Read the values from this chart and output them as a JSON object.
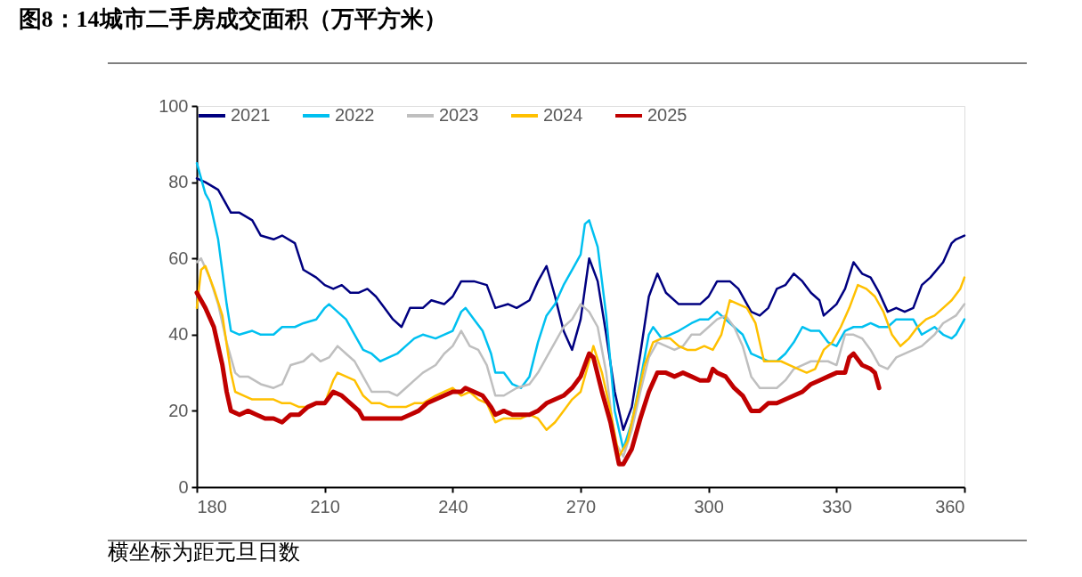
{
  "chart_data": {
    "type": "line",
    "title": "图8：14城市二手房成交面积（万平方米）",
    "annotations": [
      "横坐标为距元旦日数"
    ],
    "xlim": [
      180,
      360
    ],
    "xticks": [
      180,
      210,
      240,
      270,
      300,
      330,
      360
    ],
    "ylim": [
      0,
      100
    ],
    "yticks": [
      0,
      20,
      40,
      60,
      80,
      100
    ],
    "grid": false,
    "legend": "top",
    "line_style": "solid",
    "marker": "none",
    "series": [
      {
        "name": "2021",
        "color": "#000080",
        "x": [
          180,
          182,
          185,
          188,
          190,
          193,
          195,
          198,
          200,
          203,
          205,
          208,
          210,
          212,
          214,
          216,
          218,
          220,
          222,
          224,
          226,
          228,
          230,
          233,
          235,
          238,
          240,
          242,
          245,
          248,
          250,
          253,
          255,
          258,
          260,
          262,
          264,
          266,
          268,
          270,
          272,
          274,
          276,
          278,
          280,
          282,
          284,
          286,
          288,
          290,
          293,
          295,
          298,
          300,
          302,
          305,
          307,
          310,
          312,
          314,
          316,
          318,
          320,
          322,
          324,
          326,
          327,
          330,
          332,
          334,
          336,
          338,
          340,
          342,
          344,
          346,
          348,
          350,
          352,
          355,
          357,
          358,
          360
        ],
        "values": [
          81,
          80,
          78,
          72,
          72,
          70,
          66,
          65,
          66,
          64,
          57,
          55,
          53,
          52,
          53,
          51,
          51,
          52,
          50,
          47,
          44,
          42,
          47,
          47,
          49,
          48,
          50,
          54,
          54,
          53,
          47,
          48,
          47,
          49,
          54,
          58,
          50,
          41,
          36,
          44,
          60,
          54,
          40,
          25,
          15,
          21,
          35,
          50,
          56,
          51,
          48,
          48,
          48,
          50,
          54,
          54,
          52,
          46,
          45,
          47,
          52,
          53,
          56,
          54,
          51,
          49,
          45,
          48,
          52,
          59,
          56,
          55,
          51,
          46,
          47,
          46,
          47,
          53,
          55,
          59,
          64,
          65,
          66
        ]
      },
      {
        "name": "2022",
        "color": "#00c0f0",
        "x": [
          180,
          182,
          183,
          185,
          187,
          188,
          190,
          193,
          195,
          198,
          200,
          203,
          205,
          208,
          210,
          211,
          213,
          215,
          217,
          219,
          221,
          223,
          225,
          227,
          229,
          231,
          233,
          236,
          238,
          240,
          242,
          243,
          245,
          247,
          249,
          250,
          252,
          254,
          256,
          258,
          260,
          262,
          264,
          266,
          268,
          270,
          271,
          272,
          274,
          276,
          278,
          280,
          282,
          284,
          286,
          287,
          289,
          291,
          293,
          296,
          298,
          300,
          302,
          304,
          306,
          308,
          310,
          312,
          314,
          316,
          318,
          320,
          322,
          324,
          326,
          328,
          330,
          332,
          334,
          336,
          338,
          340,
          342,
          344,
          346,
          348,
          350,
          353,
          355,
          357,
          358,
          360
        ],
        "values": [
          85,
          77,
          75,
          65,
          48,
          41,
          40,
          41,
          40,
          40,
          42,
          42,
          43,
          44,
          47,
          48,
          46,
          44,
          40,
          36,
          35,
          33,
          34,
          35,
          37,
          39,
          40,
          39,
          40,
          41,
          46,
          47,
          44,
          41,
          35,
          30,
          30,
          27,
          26,
          29,
          38,
          45,
          48,
          53,
          57,
          61,
          69,
          70,
          63,
          45,
          20,
          10,
          17,
          28,
          40,
          42,
          39,
          40,
          41,
          43,
          44,
          44,
          46,
          44,
          42,
          40,
          35,
          34,
          33,
          33,
          35,
          38,
          42,
          41,
          41,
          38,
          37,
          41,
          42,
          42,
          43,
          42,
          42,
          44,
          44,
          44,
          40,
          42,
          40,
          39,
          40,
          44
        ]
      },
      {
        "name": "2023",
        "color": "#bfbfbf",
        "x": [
          180,
          181,
          183,
          185,
          187,
          189,
          190,
          192,
          195,
          198,
          200,
          202,
          205,
          207,
          209,
          211,
          213,
          215,
          217,
          219,
          221,
          223,
          225,
          227,
          229,
          231,
          233,
          236,
          238,
          240,
          242,
          244,
          246,
          248,
          250,
          252,
          255,
          258,
          260,
          262,
          264,
          266,
          268,
          270,
          272,
          274,
          276,
          278,
          280,
          282,
          284,
          286,
          288,
          290,
          292,
          294,
          296,
          298,
          300,
          302,
          304,
          306,
          308,
          310,
          312,
          314,
          316,
          318,
          320,
          322,
          324,
          326,
          328,
          330,
          332,
          334,
          336,
          338,
          340,
          342,
          344,
          346,
          348,
          350,
          353,
          355,
          358,
          360
        ],
        "values": [
          59,
          60,
          55,
          48,
          38,
          30,
          29,
          29,
          27,
          26,
          27,
          32,
          33,
          35,
          33,
          34,
          37,
          35,
          33,
          29,
          25,
          25,
          25,
          24,
          26,
          28,
          30,
          32,
          35,
          37,
          41,
          37,
          36,
          32,
          24,
          24,
          26,
          27,
          30,
          34,
          38,
          42,
          44,
          48,
          46,
          42,
          30,
          12,
          8,
          15,
          25,
          34,
          38,
          37,
          36,
          37,
          40,
          40,
          42,
          44,
          45,
          42,
          37,
          29,
          26,
          26,
          26,
          28,
          31,
          32,
          33,
          33,
          33,
          32,
          40,
          40,
          39,
          36,
          32,
          31,
          34,
          35,
          36,
          37,
          40,
          43,
          45,
          48
        ]
      },
      {
        "name": "2024",
        "color": "#ffc000",
        "x": [
          180,
          181,
          182,
          184,
          186,
          188,
          189,
          191,
          193,
          196,
          198,
          200,
          202,
          204,
          206,
          208,
          210,
          212,
          213,
          215,
          217,
          219,
          221,
          223,
          225,
          227,
          229,
          231,
          233,
          236,
          238,
          240,
          242,
          244,
          246,
          248,
          250,
          252,
          254,
          256,
          258,
          260,
          262,
          264,
          266,
          268,
          270,
          272,
          273,
          275,
          277,
          279,
          281,
          283,
          285,
          287,
          289,
          291,
          293,
          295,
          297,
          299,
          301,
          303,
          305,
          307,
          309,
          311,
          313,
          315,
          317,
          319,
          321,
          323,
          325,
          327,
          329,
          331,
          333,
          335,
          337,
          339,
          341,
          343,
          345,
          347,
          349,
          351,
          353,
          355,
          357,
          359,
          360
        ],
        "values": [
          47,
          57,
          58,
          52,
          45,
          30,
          25,
          24,
          23,
          23,
          23,
          22,
          22,
          21,
          21,
          22,
          22,
          28,
          30,
          29,
          28,
          24,
          22,
          22,
          21,
          21,
          21,
          22,
          22,
          24,
          25,
          26,
          24,
          25,
          23,
          22,
          17,
          18,
          18,
          18,
          19,
          18,
          15,
          17,
          20,
          23,
          25,
          33,
          37,
          30,
          20,
          8,
          12,
          22,
          32,
          38,
          39,
          39,
          37,
          36,
          36,
          37,
          36,
          40,
          49,
          48,
          47,
          43,
          33,
          33,
          33,
          32,
          31,
          30,
          31,
          36,
          38,
          42,
          47,
          53,
          52,
          50,
          46,
          40,
          37,
          39,
          42,
          44,
          45,
          47,
          49,
          52,
          55
        ]
      },
      {
        "name": "2025",
        "color": "#c00000",
        "x": [
          180,
          182,
          184,
          186,
          187,
          188,
          190,
          192,
          194,
          196,
          198,
          200,
          202,
          204,
          206,
          208,
          210,
          212,
          214,
          216,
          218,
          219,
          221,
          223,
          225,
          228,
          230,
          232,
          234,
          236,
          238,
          240,
          242,
          243,
          245,
          247,
          249,
          250,
          252,
          254,
          256,
          258,
          260,
          262,
          264,
          266,
          268,
          270,
          272,
          273,
          275,
          277,
          279,
          280,
          282,
          284,
          286,
          288,
          290,
          292,
          294,
          296,
          298,
          300,
          301,
          302,
          304,
          306,
          308,
          310,
          312,
          314,
          316,
          318,
          320,
          322,
          324,
          326,
          328,
          330,
          332,
          333,
          334,
          336,
          338,
          339,
          340
        ],
        "values": [
          51,
          47,
          42,
          32,
          25,
          20,
          19,
          20,
          19,
          18,
          18,
          17,
          19,
          19,
          21,
          22,
          22,
          25,
          24,
          22,
          20,
          18,
          18,
          18,
          18,
          18,
          19,
          20,
          22,
          23,
          24,
          25,
          25,
          26,
          25,
          24,
          21,
          19,
          20,
          19,
          19,
          19,
          20,
          22,
          23,
          24,
          26,
          29,
          35,
          34,
          25,
          17,
          6,
          6,
          10,
          18,
          25,
          30,
          30,
          29,
          30,
          29,
          28,
          28,
          31,
          30,
          29,
          26,
          24,
          20,
          20,
          22,
          22,
          23,
          24,
          25,
          27,
          28,
          29,
          30,
          30,
          34,
          35,
          32,
          31,
          30,
          26
        ]
      }
    ]
  }
}
